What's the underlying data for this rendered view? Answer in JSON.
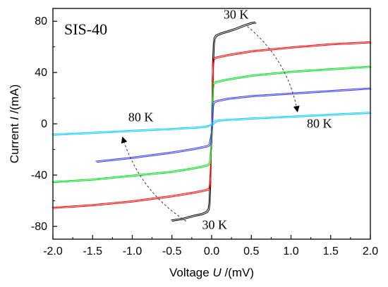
{
  "chart_data": {
    "type": "line",
    "panel_label": "SIS-40",
    "xlabel": {
      "prefix": "Voltage ",
      "symbol": "U",
      "suffix": " /(mV)"
    },
    "ylabel": {
      "prefix": "Current ",
      "symbol": "I",
      "suffix": " /(mA)"
    },
    "xlim": [
      -2.0,
      2.0
    ],
    "ylim": [
      -90,
      90
    ],
    "x_ticks": [
      -2.0,
      -1.5,
      -1.0,
      -0.5,
      0.0,
      0.5,
      1.0,
      1.5,
      2.0
    ],
    "x_tick_labels": [
      "-2.0",
      "-1.5",
      "-1.0",
      "-0.5",
      "0.0",
      "0.5",
      "1.0",
      "1.5",
      "2.0"
    ],
    "y_ticks": [
      -80,
      -40,
      0,
      40,
      80
    ],
    "y_tick_labels": [
      "-80",
      "-40",
      "0",
      "40",
      "80"
    ],
    "grid": false,
    "annotations": [
      {
        "text": "30 K",
        "x": 0.15,
        "y": 82
      },
      {
        "text": "80 K",
        "x": 1.2,
        "y": -3
      },
      {
        "text": "80 K",
        "x": -1.05,
        "y": 2
      },
      {
        "text": "30 K",
        "x": -0.12,
        "y": -82
      }
    ],
    "arrows": [
      {
        "from": [
          0.45,
          76
        ],
        "to": [
          1.08,
          10
        ]
      },
      {
        "from": [
          -0.32,
          -76
        ],
        "to": [
          -1.12,
          -11
        ]
      }
    ],
    "series": [
      {
        "color": "#000000",
        "x": [
          -0.5,
          -0.45,
          -0.35,
          -0.2,
          -0.12,
          -0.08,
          -0.05,
          -0.03,
          -0.02,
          -0.01,
          0.0,
          0.01,
          0.02,
          0.03,
          0.05,
          0.08,
          0.12,
          0.2,
          0.3,
          0.4,
          0.5,
          0.55
        ],
        "y": [
          -76,
          -75.5,
          -74.5,
          -72,
          -71,
          -70,
          -69,
          -67,
          -62,
          -45,
          0,
          45,
          62,
          67,
          69,
          70,
          71,
          72.5,
          74.5,
          77,
          79,
          79.5
        ]
      },
      {
        "color": "#ff0000",
        "x": [
          -2.0,
          -1.5,
          -1.0,
          -0.5,
          -0.2,
          -0.05,
          -0.02,
          -0.01,
          0.0,
          0.01,
          0.02,
          0.05,
          0.2,
          0.5,
          1.0,
          1.5,
          2.0
        ],
        "y": [
          -66,
          -64,
          -61,
          -57,
          -54,
          -52,
          -51,
          -45,
          0,
          45,
          51,
          52,
          54,
          57,
          60,
          62.5,
          64
        ]
      },
      {
        "color": "#00dd22",
        "x": [
          -2.0,
          -1.5,
          -1.0,
          -0.5,
          -0.2,
          -0.05,
          -0.02,
          -0.01,
          0.0,
          0.01,
          0.02,
          0.05,
          0.2,
          0.5,
          1.0,
          1.5,
          2.0
        ],
        "y": [
          -46,
          -44,
          -41,
          -38,
          -35,
          -33,
          -32,
          -28,
          0,
          28,
          32,
          33,
          35,
          38,
          41,
          43,
          45
        ]
      },
      {
        "color": "#3333ff",
        "x": [
          -1.45,
          -1.0,
          -0.5,
          -0.2,
          -0.05,
          -0.02,
          -0.01,
          0.0,
          0.01,
          0.02,
          0.05,
          0.2,
          0.5,
          1.0,
          1.5,
          2.0
        ],
        "y": [
          -30,
          -27,
          -23,
          -20,
          -18,
          -17,
          -14,
          0,
          14,
          17,
          18,
          20,
          22,
          24,
          26,
          28
        ]
      },
      {
        "color": "#00ccff",
        "x": [
          -2.0,
          -1.5,
          -1.0,
          -0.5,
          -0.2,
          -0.1,
          -0.05,
          0.0,
          0.05,
          0.1,
          0.2,
          0.5,
          1.0,
          1.5,
          2.0
        ],
        "y": [
          -9,
          -7.5,
          -6,
          -4.5,
          -3.5,
          -3,
          -2.5,
          0,
          2.5,
          3,
          3.5,
          4.5,
          6,
          7.5,
          9
        ]
      }
    ]
  }
}
